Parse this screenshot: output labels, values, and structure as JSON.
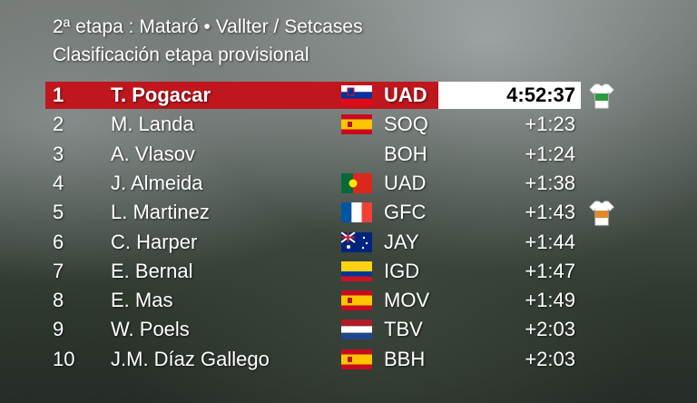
{
  "header": {
    "title": "2ª etapa : Mataró • Vallter / Setcases",
    "subtitle": "Clasificación etapa provisional"
  },
  "table": {
    "rows": [
      [
        "1",
        "T. Pogacar",
        "UAD",
        "4:52:37"
      ],
      [
        "2",
        "M. Landa",
        "SOQ",
        "+1:23"
      ],
      [
        "3",
        "A. Vlasov",
        "BOH",
        "+1:24"
      ],
      [
        "4",
        "J. Almeida",
        "UAD",
        "+1:38"
      ],
      [
        "5",
        "L. Martinez",
        "GFC",
        "+1:43"
      ],
      [
        "6",
        "C. Harper",
        "JAY",
        "+1:44"
      ],
      [
        "7",
        "E. Bernal",
        "IGD",
        "+1:47"
      ],
      [
        "8",
        "E. Mas",
        "MOV",
        "+1:49"
      ],
      [
        "9",
        "W. Poels",
        "TBV",
        "+2:03"
      ],
      [
        "10",
        "J.M. Díaz Gallego",
        "BBH",
        "+2:03"
      ]
    ]
  }
}
